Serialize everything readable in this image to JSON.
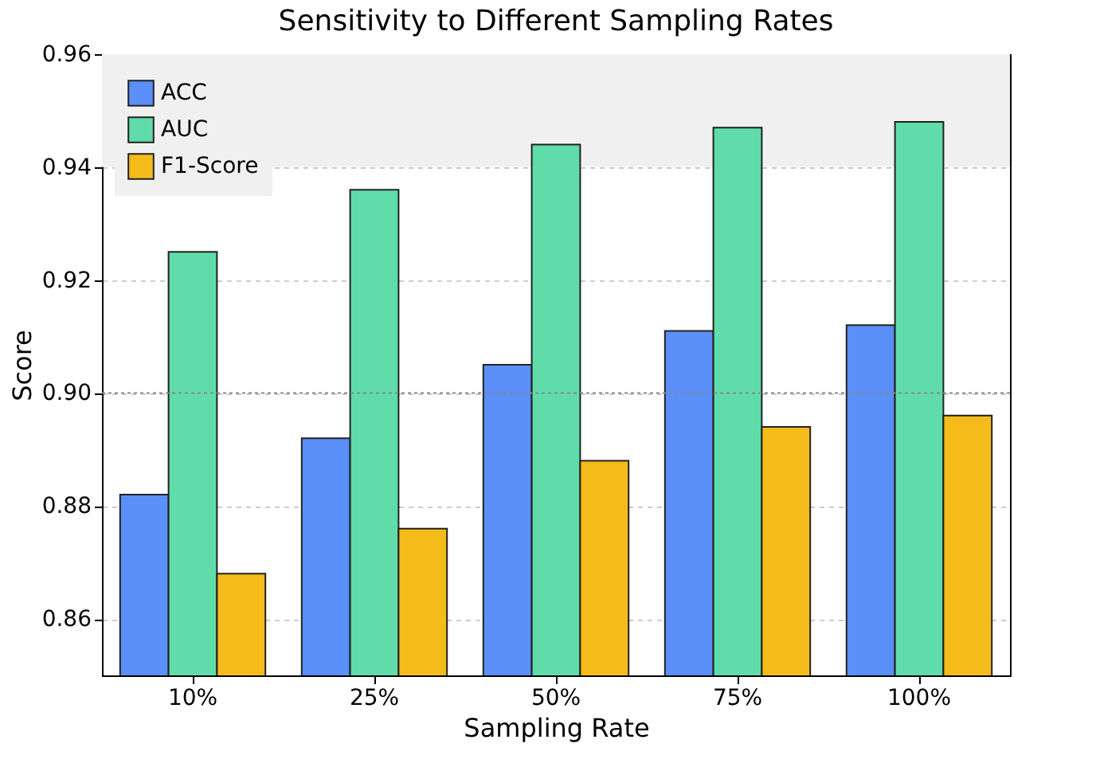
{
  "chart_data": {
    "type": "bar",
    "title": "Sensitivity to Different Sampling Rates",
    "xlabel": "Sampling Rate",
    "ylabel": "Score",
    "categories": [
      "10%",
      "25%",
      "50%",
      "75%",
      "100%"
    ],
    "series": [
      {
        "name": "ACC",
        "color": "#5b8ff9",
        "values": [
          0.882,
          0.892,
          0.905,
          0.911,
          0.912
        ]
      },
      {
        "name": "AUC",
        "color": "#5fdcaa",
        "values": [
          0.925,
          0.936,
          0.944,
          0.947,
          0.948
        ]
      },
      {
        "name": "F1-Score",
        "color": "#f5bb1a",
        "values": [
          0.868,
          0.876,
          0.888,
          0.894,
          0.896
        ]
      }
    ],
    "ylim": [
      0.85,
      0.96
    ],
    "yticks": [
      0.86,
      0.88,
      {
        "value": 0.9,
        "label": "0.90"
      },
      0.92,
      0.94,
      0.96
    ],
    "grid": "y",
    "legend": "top left",
    "bands": [
      {
        "axis": "y",
        "from": 0.94,
        "to": 0.96,
        "color": "#f0f0f0"
      }
    ],
    "ref_lines": [
      {
        "axis": "y",
        "value": 0.9,
        "color": "#888888",
        "line_style": "dotted"
      }
    ]
  }
}
